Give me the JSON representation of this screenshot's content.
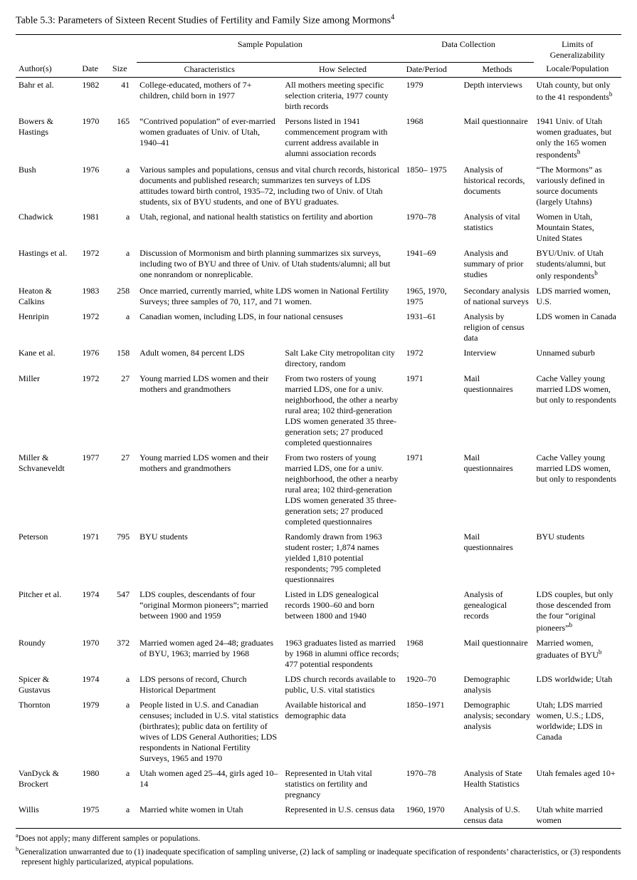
{
  "title": "Table 5.3: Parameters of Sixteen Recent Studies of Fertility and Family Size among Mormons",
  "title_sup": "4",
  "group_headers": {
    "sample_population": "Sample Population",
    "data_collection": "Data Collection",
    "limits": "Limits of Generalizability Locale/Population"
  },
  "columns": {
    "author": "Author(s)",
    "date": "Date",
    "size": "Size",
    "characteristics": "Characteristics",
    "how_selected": "How Selected",
    "date_period": "Date/Period",
    "methods": "Methods",
    "limits": "Limits of Generalizability Locale/Population"
  },
  "rows": [
    {
      "author": "Bahr et al.",
      "date": "1982",
      "size": "41",
      "characteristics": "College-educated, mothers of 7+ children, child born in 1977",
      "how_selected": "All mothers meeting specific selection criteria, 1977 county birth records",
      "date_period": "1979",
      "methods": "Depth interviews",
      "limits": "Utah county, but only to the 41 respondents",
      "limits_sup": "b"
    },
    {
      "author": "Bowers & Hastings",
      "date": "1970",
      "size": "165",
      "characteristics": "“Contrived population” of ever-married women graduates of Univ. of Utah, 1940–41",
      "how_selected": "Persons listed in 1941 commencement program with current address available in alumni association records",
      "date_period": "1968",
      "methods": "Mail questionnaire",
      "limits": "1941 Univ. of Utah women graduates, but only the 165 women respondents",
      "limits_sup": "b"
    },
    {
      "author": "Bush",
      "date": "1976",
      "size": "a",
      "characteristics": "Various samples and populations, census and vital church records, historical documents and published research; summarizes ten surveys of LDS attitudes toward birth control, 1935–72, including two of Univ. of Utah students, six of BYU students, and one of BYU graduates.",
      "how_selected": "",
      "span_char_how": true,
      "date_period": "1850– 1975",
      "methods": "Analysis of historical records, documents",
      "limits": "“The Mormons” as variously defined in source documents (largely Utahns)"
    },
    {
      "author": "Chadwick",
      "date": "1981",
      "size": "a",
      "characteristics": "Utah, regional, and national health statistics on fertility and abortion",
      "how_selected": "",
      "span_char_how": true,
      "date_period": "1970–78",
      "methods": "Analysis of vital statistics",
      "limits": "Women in Utah, Mountain States, United States"
    },
    {
      "author": "Hastings et al.",
      "date": "1972",
      "size": "a",
      "characteristics": "Discussion of Mormonism and birth planning summarizes six surveys, including two of BYU and three of Univ. of Utah students/alumni; all but one nonrandom or nonreplicable.",
      "how_selected": "",
      "span_char_how": true,
      "date_period": "1941–69",
      "methods": "Analysis and summary of prior studies",
      "limits": "BYU/Univ. of Utah students/alumni, but only respondents",
      "limits_sup": "b"
    },
    {
      "author": "Heaton & Calkins",
      "date": "1983",
      "size": "258",
      "characteristics": "Once married, currently married, white LDS women in National Fertility Surveys; three samples of 70, 117, and 71 women.",
      "how_selected": "",
      "span_char_how": true,
      "date_period": "1965, 1970, 1975",
      "methods": "Secondary analysis of national surveys",
      "limits": "LDS married women, U.S."
    },
    {
      "author": "Henripin",
      "date": "1972",
      "size": "a",
      "characteristics": "Canadian women, including LDS, in four national censuses",
      "how_selected": "",
      "span_char_how": true,
      "date_period": "1931–61",
      "methods": "Analysis by religion of census data",
      "limits": "LDS women in Canada"
    },
    {
      "author": "Kane et al.",
      "date": "1976",
      "size": "158",
      "characteristics": "Adult women, 84 percent LDS",
      "how_selected": "Salt Lake City metropolitan city directory, random",
      "date_period": "1972",
      "methods": "Interview",
      "limits": "Unnamed suburb"
    },
    {
      "author": "Miller",
      "date": "1972",
      "size": "27",
      "characteristics": "Young married LDS women and their mothers and grandmothers",
      "how_selected": "From two rosters of young married LDS, one for a univ. neighborhood, the other a nearby rural area; 102 third-generation LDS women generated 35 three-generation sets; 27 produced completed questionnaires",
      "date_period": "1971",
      "methods": "Mail questionnaires",
      "limits": "Cache Valley young married LDS women, but only to respondents"
    },
    {
      "author": "Miller & Schvaneveldt",
      "date": "1977",
      "size": "27",
      "characteristics": "Young married LDS women and their mothers and grandmothers",
      "how_selected": "From two rosters of young married LDS, one for a univ. neighborhood, the other a nearby rural area; 102 third-generation LDS women generated 35 three-generation sets; 27 produced completed questionnaires",
      "date_period": "1971",
      "methods": "Mail questionnaires",
      "limits": "Cache Valley young married LDS women, but only to respondents"
    },
    {
      "author": "Peterson",
      "date": "1971",
      "size": "795",
      "characteristics": "BYU students",
      "how_selected": "Randomly drawn from 1963 student roster; 1,874 names yielded 1,810 potential respondents; 795 completed questionnaires",
      "date_period": "",
      "methods": "Mail questionnaires",
      "limits": "BYU students"
    },
    {
      "author": "Pitcher et al.",
      "date": "1974",
      "size": "547",
      "characteristics": "LDS couples, descendants of four “original Mormon pioneers”; married between 1900 and 1959",
      "how_selected": "Listed in LDS genealogical records 1900–60 and born between 1800 and 1940",
      "date_period": "",
      "methods": "Analysis of genealogical records",
      "limits": "LDS couples, but only those descended from the four “original pioneers”",
      "limits_sup": "b"
    },
    {
      "author": "Roundy",
      "date": "1970",
      "size": "372",
      "characteristics": "Married women aged 24–48; graduates of BYU, 1963; married by 1968",
      "how_selected": "1963 graduates listed as married by 1968 in alumni office records; 477 potential respondents",
      "date_period": "1968",
      "methods": "Mail questionnaire",
      "limits": "Married women, graduates of BYU",
      "limits_sup": "b"
    },
    {
      "author": "Spicer & Gustavus",
      "date": "1974",
      "size": "a",
      "characteristics": "LDS persons of record, Church Historical Department",
      "how_selected": "LDS church records available to public, U.S. vital statistics",
      "date_period": "1920–70",
      "methods": "Demographic analysis",
      "limits": "LDS worldwide; Utah"
    },
    {
      "author": "Thornton",
      "date": "1979",
      "size": "a",
      "characteristics": "People listed in U.S. and Canadian censuses; included in U.S. vital statistics (birthrates); public data on fertility of wives of LDS General Authorities; LDS respondents in National Fertility Surveys, 1965 and 1970",
      "how_selected": "Available historical and demographic data",
      "date_period": "1850–1971",
      "methods": "Demographic analysis; secondary analysis",
      "limits": "Utah; LDS married women, U.S.; LDS, worldwide; LDS in Canada"
    },
    {
      "author": "VanDyck & Brockert",
      "date": "1980",
      "size": "a",
      "characteristics": "Utah women aged 25–44, girls aged 10–14",
      "how_selected": "Represented in Utah vital statistics on fertility and pregnancy",
      "date_period": "1970–78",
      "methods": "Analysis of State Health Statistics",
      "limits": "Utah females aged 10+"
    },
    {
      "author": "Willis",
      "date": "1975",
      "size": "a",
      "characteristics": "Married white women in Utah",
      "how_selected": "Represented in U.S. census data",
      "date_period": "1960, 1970",
      "methods": "Analysis of U.S. census data",
      "limits": "Utah white married women"
    }
  ],
  "footnotes": {
    "a": "Does not apply; many different samples or populations.",
    "b": "Generalization unwarranted due to (1) inadequate specification of sampling universe, (2) lack of sampling or inadequate specification of respondents’ characteristics, or (3) respondents represent highly particularized, atypical populations."
  }
}
